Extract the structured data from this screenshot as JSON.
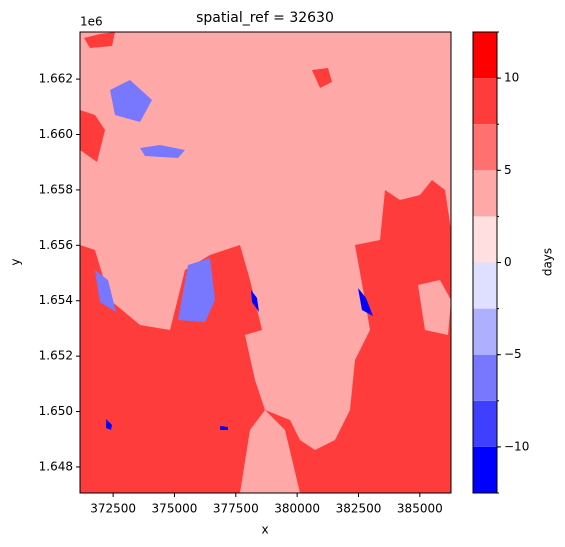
{
  "chart_data": {
    "type": "raster",
    "title": "spatial_ref = 32630",
    "x_label": "x",
    "y_label": "y",
    "y_offset_label": "1e6",
    "xlim": [
      371150,
      386270
    ],
    "xticks": [
      372500,
      375000,
      377500,
      380000,
      382500,
      385000
    ],
    "ylim": [
      1647060,
      1663700
    ],
    "yticks": [
      {
        "value": 1648000,
        "label": "1.648"
      },
      {
        "value": 1650000,
        "label": "1.650"
      },
      {
        "value": 1652000,
        "label": "1.652"
      },
      {
        "value": 1654000,
        "label": "1.654"
      },
      {
        "value": 1656000,
        "label": "1.656"
      },
      {
        "value": 1658000,
        "label": "1.658"
      },
      {
        "value": 1660000,
        "label": "1.660"
      },
      {
        "value": 1662000,
        "label": "1.662"
      }
    ],
    "colorbar": {
      "label": "days",
      "levels": [
        -12.5,
        -10,
        -7.5,
        -5,
        -2.5,
        0,
        2.5,
        5,
        7.5,
        10,
        12.5
      ],
      "colors": [
        "#0000ff",
        "#3f3fff",
        "#7878ff",
        "#afafff",
        "#dfdfff",
        "#ffdfdf",
        "#ffa8a8",
        "#ff7070",
        "#ff3c3c",
        "#ff0000"
      ],
      "ticks": [
        {
          "value": -10,
          "label": "−10"
        },
        {
          "value": -5,
          "label": "−5"
        },
        0,
        5,
        10
      ]
    }
  }
}
